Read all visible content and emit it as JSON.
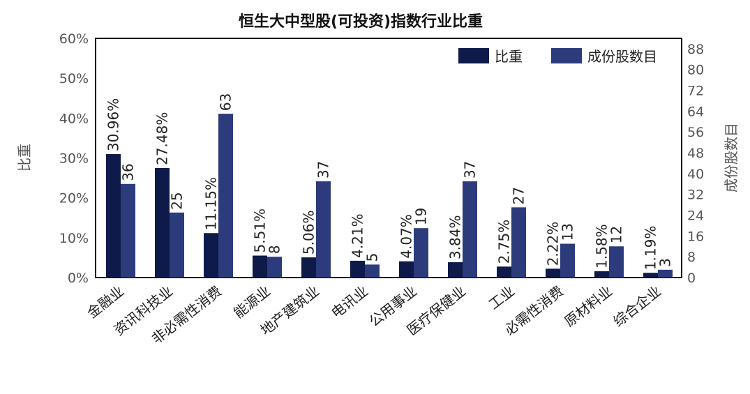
{
  "chart_data": {
    "type": "bar",
    "title": "恒生大中型股(可投资)指数行业比重",
    "ylabel": "比重",
    "y2label": "成份股数目",
    "ylim": [
      0,
      60
    ],
    "y2lim": [
      0,
      92
    ],
    "yticks": [
      "0%",
      "10%",
      "20%",
      "30%",
      "40%",
      "50%",
      "60%"
    ],
    "y2ticks": [
      "0",
      "8",
      "16",
      "24",
      "32",
      "40",
      "48",
      "56",
      "64",
      "72",
      "80",
      "88"
    ],
    "legend_position": "top-right",
    "categories": [
      "金融业",
      "资讯科技业",
      "非必需性消费",
      "能源业",
      "地产建筑业",
      "电讯业",
      "公用事业",
      "医疗保健业",
      "工业",
      "必需性消费",
      "原材料业",
      "综合企业"
    ],
    "series": [
      {
        "name": "比重",
        "axis": "left",
        "color": "#0d1a4a",
        "values": [
          30.96,
          27.48,
          11.15,
          5.51,
          5.06,
          4.21,
          4.07,
          3.84,
          2.75,
          2.22,
          1.58,
          1.19
        ],
        "labels": [
          "30.96%",
          "27.48%",
          "11.15%",
          "5.51%",
          "5.06%",
          "4.21%",
          "4.07%",
          "3.84%",
          "2.75%",
          "2.22%",
          "1.58%",
          "1.19%"
        ]
      },
      {
        "name": "成份股数目",
        "axis": "right",
        "color": "#2c3b7c",
        "values": [
          36,
          25,
          63,
          8,
          37,
          5,
          19,
          37,
          27,
          13,
          12,
          3
        ],
        "labels": [
          "36",
          "25",
          "63",
          "8",
          "37",
          "5",
          "19",
          "37",
          "27",
          "13",
          "12",
          "3"
        ]
      }
    ]
  }
}
